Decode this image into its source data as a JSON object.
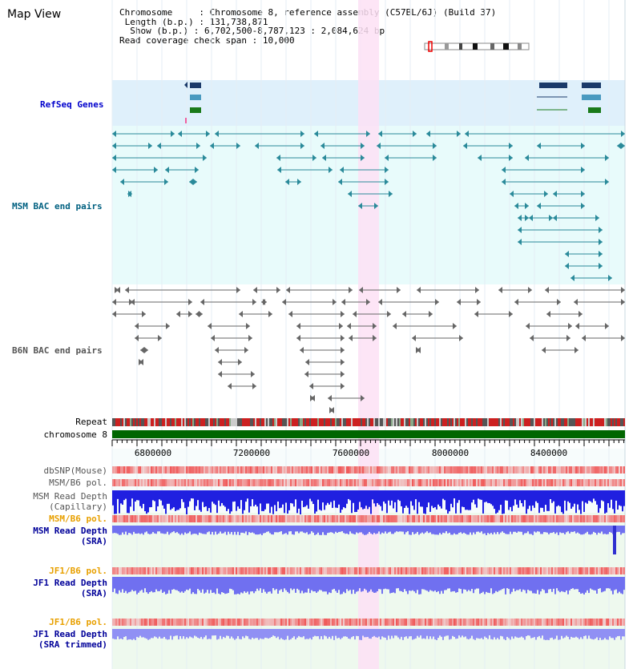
{
  "page": {
    "title": "Map View"
  },
  "info": {
    "chromosome_label": "Chromosome",
    "chromosome_value": "Chromosome 8, reference assembly (C57BL/6J) (Build 37)",
    "length_label": "Length (b.p.)",
    "length_value": "131,738,871",
    "show_label": "Show (b.p.)",
    "show_value": "6,702,500-8,787,123 : 2,084,624 bp",
    "coverage_label": "Read coverage check span",
    "coverage_value": "10,000"
  },
  "tracks": {
    "refseq_label": "RefSeq Genes",
    "msm_bac_label": "MSM BAC end pairs",
    "b6n_bac_label": "B6N BAC end pairs",
    "repeat_label": "Repeat",
    "chromosome_label": "chromosome 8",
    "dbsnp_label": "dbSNP(Mouse)",
    "msm_pol_label": "MSM/B6 pol.",
    "msm_depth_cap_label_1": "MSM Read Depth",
    "msm_depth_cap_label_2": "(Capillary)",
    "msm_pol2_label": "MSM/B6 pol.",
    "msm_depth_sra_label_1": "MSM Read Depth",
    "msm_depth_sra_label_2": "(SRA)",
    "jf1_pol_label": "JF1/B6 pol.",
    "jf1_depth_label_1": "JF1 Read Depth",
    "jf1_depth_label_2": "(SRA)",
    "jf1_pol2_label": "JF1/B6 pol.",
    "jf1_trim_label_1": "JF1 Read Depth",
    "jf1_trim_label_2": "(SRA trimmed)"
  },
  "axis": {
    "ticks": [
      "6800000",
      "7200000",
      "7600000",
      "8000000",
      "8400000"
    ]
  },
  "colors": {
    "refseq_bg": "#dff0fb",
    "msm_bg": "#e8fbfb",
    "highlight": "#fde0f5",
    "teal": "#2a8a9a",
    "gene_navy": "#1a3a6a",
    "gene_blue": "#4a9ac0",
    "gene_green": "#1a7a1a",
    "chrom_green": "#006600",
    "depth_blue": "#2020e0",
    "depth_light": "#7070f0",
    "polymorph_red": "#e84040",
    "repeat_red": "#cc2020"
  }
}
